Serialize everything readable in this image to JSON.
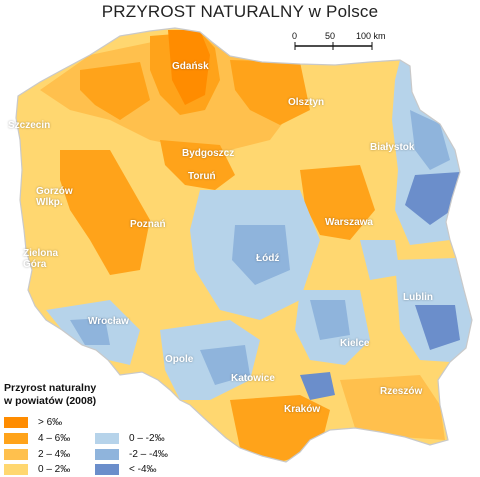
{
  "title": "PRZYROST NATURALNY w Polsce",
  "scale": {
    "labels": [
      "0",
      "50",
      "100 km"
    ]
  },
  "cities": [
    {
      "name": "Gdańsk",
      "id": "gdansk"
    },
    {
      "name": "Olsztyn",
      "id": "olsztyn"
    },
    {
      "name": "Szczecin",
      "id": "szczecin"
    },
    {
      "name": "Białystok",
      "id": "bialystok"
    },
    {
      "name": "Bydgoszcz",
      "id": "bydgoszcz"
    },
    {
      "name": "Toruń",
      "id": "torun"
    },
    {
      "name": "Gorzów\nWlkp.",
      "id": "gorzow"
    },
    {
      "name": "Poznań",
      "id": "poznan"
    },
    {
      "name": "Warszawa",
      "id": "warszawa"
    },
    {
      "name": "Łódź",
      "id": "lodz"
    },
    {
      "name": "Zielona\nGóra",
      "id": "zielona-gora"
    },
    {
      "name": "Wrocław",
      "id": "wroclaw"
    },
    {
      "name": "Lublin",
      "id": "lublin"
    },
    {
      "name": "Opole",
      "id": "opole"
    },
    {
      "name": "Kielce",
      "id": "kielce"
    },
    {
      "name": "Katowice",
      "id": "katowice"
    },
    {
      "name": "Rzeszów",
      "id": "rzeszow"
    },
    {
      "name": "Kraków",
      "id": "krakow"
    }
  ],
  "legend": {
    "title": "Przyrost naturalny\nw powiatów (2008)",
    "items": [
      {
        "label": "> 6‰",
        "color": "#ff8c00"
      },
      {
        "label": "4 – 6‰",
        "color": "#ffa31a"
      },
      {
        "label": "2 – 4‰",
        "color": "#ffc04d"
      },
      {
        "label": "0 – 2‰",
        "color": "#ffd770"
      },
      {
        "label": "0 – -2‰",
        "color": "#b6d3ea"
      },
      {
        "label": "-2 – -4‰",
        "color": "#8fb4dc"
      },
      {
        "label": "< -4‰",
        "color": "#6b8ecb"
      }
    ]
  },
  "colors": {
    "c_gt6": "#ff8c00",
    "c_4_6": "#ffa31a",
    "c_2_4": "#ffc04d",
    "c_0_2": "#ffd770",
    "c_0_m2": "#b6d3ea",
    "c_m2_m4": "#8fb4dc",
    "c_lt_m4": "#6b8ecb",
    "border": "#ffffff",
    "outline": "#c9c9c9"
  }
}
